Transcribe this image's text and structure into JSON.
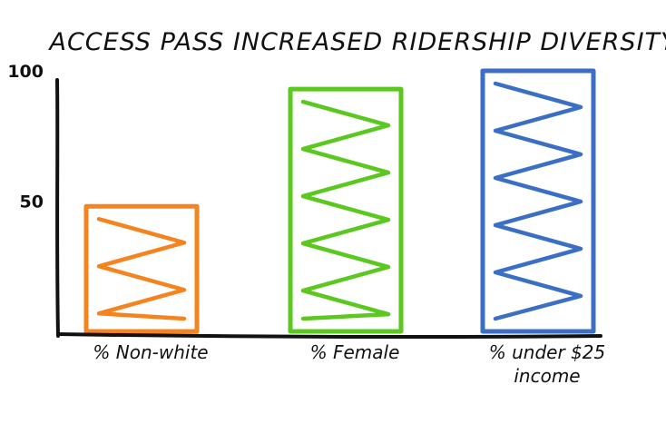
{
  "chart_data": {
    "type": "bar",
    "title": "ACCESS PASS INCREASED RIDERSHIP DIVERSITY",
    "xlabel": "",
    "ylabel": "",
    "ylim": [
      0,
      100
    ],
    "yticks": [
      {
        "value": 50,
        "label": "50"
      },
      {
        "value": 100,
        "label": "100"
      }
    ],
    "grid": false,
    "categories": [
      {
        "lines": [
          "% Non-white"
        ]
      },
      {
        "lines": [
          "% Female"
        ]
      },
      {
        "lines": [
          "% under $25",
          "income"
        ]
      }
    ],
    "values": [
      48,
      93,
      100
    ],
    "colors": [
      "#f5841f",
      "#5ac81e",
      "#3b6fc6"
    ]
  }
}
